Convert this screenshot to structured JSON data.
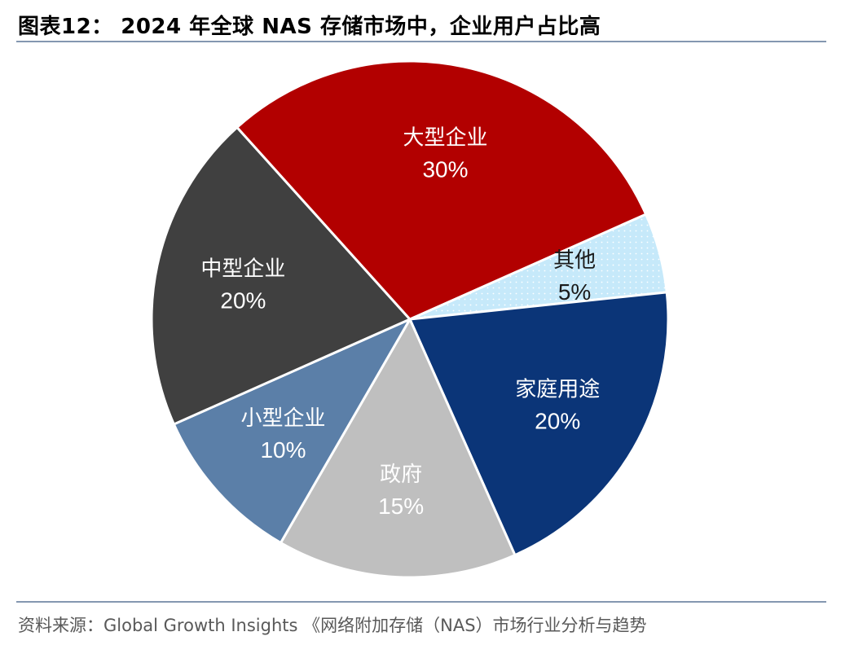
{
  "header": {
    "title": "图表12： 2024 年全球 NAS 存储市场中，企业用户占比高"
  },
  "footer": {
    "source": "资料来源：Global Growth Insights 《网络附加存储（NAS）市场行业分析与趋势"
  },
  "chart_data": {
    "type": "pie",
    "start_angle_deg": 66,
    "direction": "clockwise",
    "slices": [
      {
        "label": "其他",
        "value": 5,
        "value_label": "5%",
        "color": "#c6e9fa",
        "pattern": "dots",
        "text_color": "#1a1a1a"
      },
      {
        "label": "家庭用途",
        "value": 20,
        "value_label": "20%",
        "color": "#0b3578",
        "text_color": "#ffffff"
      },
      {
        "label": "政府",
        "value": 15,
        "value_label": "15%",
        "color": "#bfbfbf",
        "text_color": "#ffffff"
      },
      {
        "label": "小型企业",
        "value": 10,
        "value_label": "10%",
        "color": "#5b7fa8",
        "text_color": "#ffffff"
      },
      {
        "label": "中型企业",
        "value": 20,
        "value_label": "20%",
        "color": "#404040",
        "text_color": "#ffffff"
      },
      {
        "label": "大型企业",
        "value": 30,
        "value_label": "30%",
        "color": "#b20000",
        "text_color": "#ffffff"
      }
    ]
  }
}
